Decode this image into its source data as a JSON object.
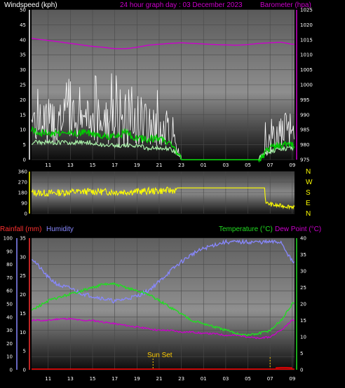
{
  "chart_data": [
    {
      "type": "line",
      "panel": "wind_pressure",
      "title": "24 hour graph day : 03 December 2023",
      "ylabel_left": "Windspeed (kph)",
      "ylabel_right": "Barometer (hpa)",
      "x_ticks": [
        "11",
        "13",
        "15",
        "17",
        "19",
        "21",
        "23",
        "01",
        "03",
        "05",
        "07",
        "09"
      ],
      "ylim_left": [
        0,
        50
      ],
      "yticks_left": [
        "0",
        "5",
        "10",
        "15",
        "20",
        "25",
        "30",
        "35",
        "40",
        "45",
        "50"
      ],
      "ylim_right": [
        975,
        1025
      ],
      "yticks_right": [
        "975",
        "980",
        "985",
        "990",
        "995",
        "1000",
        "1005",
        "1010",
        "1015",
        "1020",
        "1025"
      ],
      "x_hours": [
        9.5,
        10,
        11,
        12,
        13,
        14,
        15,
        16,
        17,
        18,
        19,
        20,
        21,
        22,
        23,
        24,
        25,
        26,
        27,
        28,
        29,
        30,
        31,
        32,
        33
      ],
      "barometer": [
        1015.5,
        1015.2,
        1014.8,
        1014.3,
        1013.8,
        1013.3,
        1012.8,
        1012.5,
        1012.0,
        1012.0,
        1012.5,
        1013.2,
        1013.5,
        1013.8,
        1014.0,
        1013.8,
        1013.6,
        1013.4,
        1013.3,
        1013.2,
        1013.4,
        1013.8,
        1014.0,
        1014.2,
        1013.5
      ],
      "gust_max": [
        22,
        20,
        21,
        20,
        22,
        21,
        21,
        21,
        23,
        24,
        23,
        22,
        17,
        14,
        0,
        0,
        0,
        0,
        0,
        0,
        0,
        0,
        10,
        15,
        17
      ],
      "wind_avg": [
        10,
        9,
        9,
        9,
        9,
        9,
        9,
        8,
        8,
        9,
        7,
        7,
        7,
        6,
        0,
        0,
        0,
        0,
        0,
        0,
        0,
        0,
        4,
        5,
        5
      ],
      "gust_min": [
        5,
        5,
        5,
        5,
        5,
        5,
        5,
        4,
        4,
        4,
        4,
        3,
        3,
        3,
        0,
        0,
        0,
        0,
        0,
        0,
        0,
        0,
        2,
        3,
        3
      ],
      "colors": {
        "wind": "#ffffff",
        "avg": "#00cc00",
        "band": "#a8f0a8",
        "barometer": "#cc00cc"
      }
    },
    {
      "type": "line",
      "panel": "wind_direction",
      "ylim": [
        0,
        360
      ],
      "yticks": [
        "0",
        "90",
        "180",
        "270",
        "360"
      ],
      "compass_labels": [
        "N",
        "W",
        "S",
        "E",
        "N"
      ],
      "x_hours": [
        9.5,
        11,
        13,
        15,
        17,
        19,
        21,
        22.5,
        22.6,
        30.5,
        30.6,
        31.5,
        33
      ],
      "direction": [
        180,
        175,
        185,
        190,
        185,
        190,
        195,
        200,
        220,
        220,
        90,
        70,
        60
      ],
      "color": "#ffff00"
    },
    {
      "type": "line",
      "panel": "temp_humidity_rain",
      "ylabel_left_1": "Rainfall (mm)",
      "ylabel_left_2": "Humidity",
      "ylabel_right_1": "Temperature (°C)",
      "ylabel_right_2": "Dew Point (°C)",
      "x_ticks": [
        "11",
        "13",
        "15",
        "17",
        "19",
        "21",
        "23",
        "01",
        "03",
        "05",
        "07",
        "09"
      ],
      "ylim_humidity": [
        0,
        100
      ],
      "yticks_humidity": [
        "0",
        "10",
        "20",
        "30",
        "40",
        "50",
        "60",
        "70",
        "80",
        "90",
        "100"
      ],
      "ylim_rain": [
        0,
        35
      ],
      "yticks_rain": [
        "0",
        "5",
        "10",
        "15",
        "20",
        "25",
        "30",
        "35"
      ],
      "ylim_temp": [
        0,
        40
      ],
      "yticks_temp": [
        "0",
        "5",
        "10",
        "15",
        "20",
        "25",
        "30",
        "35",
        "40"
      ],
      "annotation": "Sun Set",
      "x_hours": [
        9.5,
        10,
        11,
        12,
        13,
        14,
        15,
        16,
        17,
        18,
        19,
        20,
        21,
        22,
        23,
        24,
        25,
        26,
        27,
        28,
        29,
        30,
        31,
        32,
        33
      ],
      "humidity": [
        85,
        80,
        70,
        64,
        62,
        58,
        56,
        54,
        52,
        54,
        56,
        60,
        67,
        75,
        82,
        88,
        92,
        95,
        97,
        97,
        97,
        97,
        97,
        97,
        82
      ],
      "temperature": [
        18,
        19,
        21,
        22,
        23,
        24,
        25,
        26,
        26,
        25,
        24,
        23,
        21,
        19,
        17,
        15,
        14,
        13,
        12,
        11,
        10.5,
        11,
        12,
        15,
        20
      ],
      "dewpoint": [
        15,
        15,
        15,
        15.5,
        15.5,
        15,
        15,
        14.5,
        14,
        13.5,
        13,
        12.5,
        12,
        12,
        11.5,
        11.5,
        11,
        11,
        10.5,
        10.5,
        10,
        9.5,
        10,
        12,
        15
      ],
      "rain_hours": [
        31.5,
        32,
        32.5,
        33
      ],
      "rain": [
        0.5,
        0.6,
        0.6,
        0.5
      ],
      "colors": {
        "humidity": "#8888ff",
        "temperature": "#22dd22",
        "dewpoint": "#cc00cc",
        "rain": "#ff0000",
        "sunset": "#ffcc00"
      }
    }
  ]
}
